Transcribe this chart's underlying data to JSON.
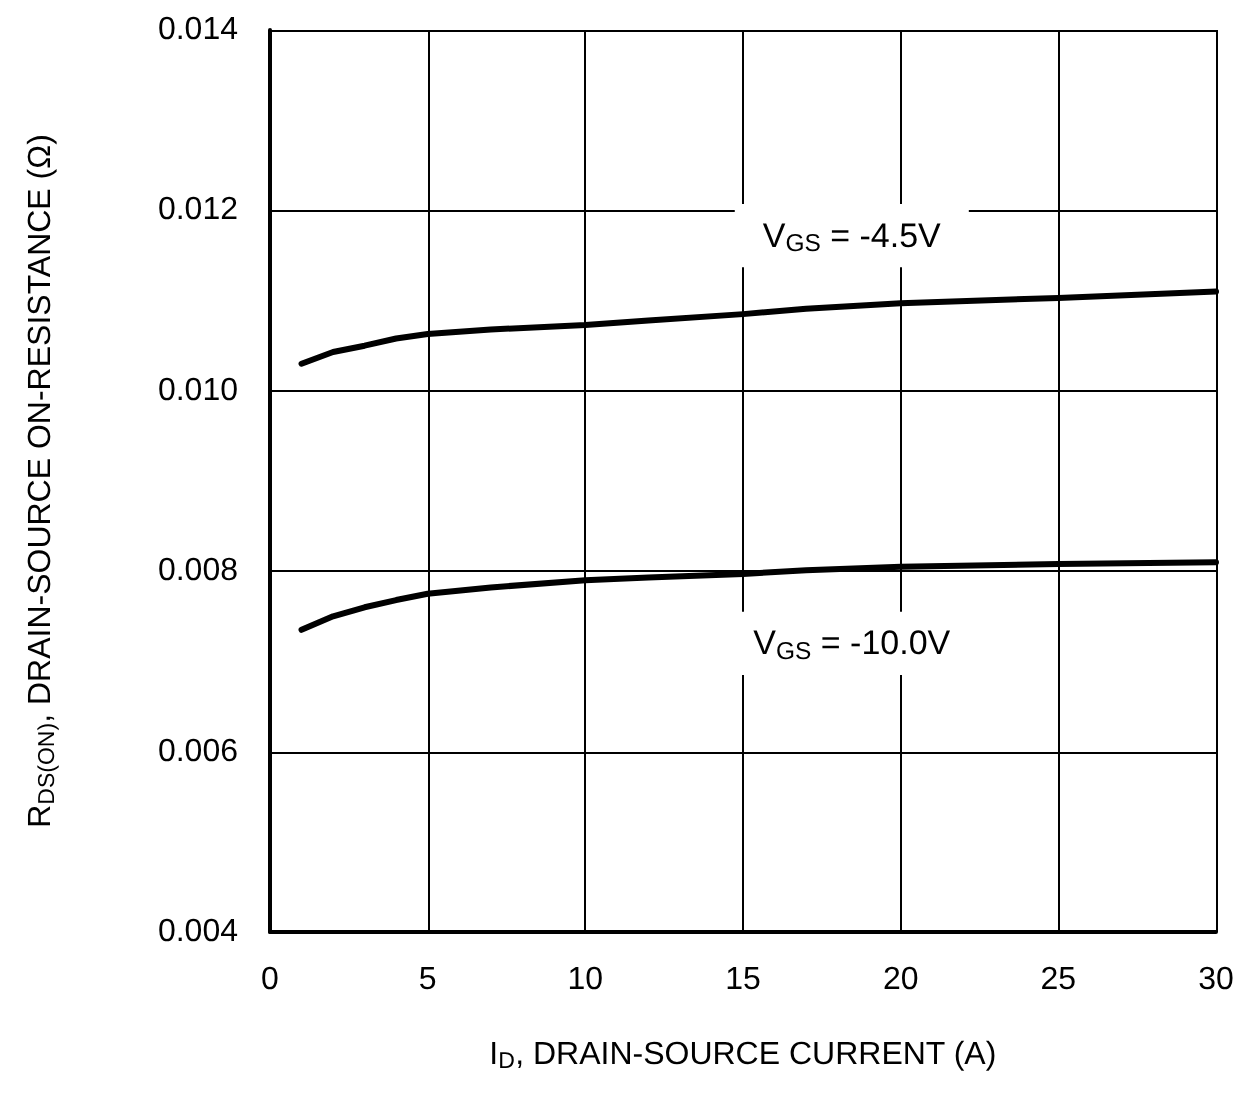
{
  "chart_data": {
    "type": "line",
    "xlabel": "I$_{D}$, DRAIN-SOURCE CURRENT (A)",
    "ylabel": "R$_{DS(ON)}$, DRAIN-SOURCE ON-RESISTANCE (Ω)",
    "xlim": [
      0,
      30
    ],
    "xticks": [
      0,
      5,
      10,
      15,
      20,
      25,
      30
    ],
    "ylim": [
      0.004,
      0.014
    ],
    "yticks": [
      0.004,
      0.006,
      0.008,
      {
        "value": 0.01,
        "label": "0.010"
      },
      0.012,
      0.014
    ],
    "grid": true,
    "marker": "none",
    "line_style": "solid",
    "series": [
      {
        "color": "#000000",
        "x": [
          1,
          2,
          3,
          4,
          5,
          7,
          10,
          12,
          15,
          17,
          20,
          25,
          30
        ],
        "values": [
          0.0103,
          0.01043,
          0.0105,
          0.01058,
          0.01063,
          0.01068,
          0.01073,
          0.01078,
          0.01085,
          0.01091,
          0.01097,
          0.01103,
          0.0111
        ]
      },
      {
        "color": "#000000",
        "x": [
          1,
          2,
          3,
          4,
          5,
          7,
          10,
          12,
          15,
          17,
          20,
          25,
          30
        ],
        "values": [
          0.00735,
          0.0075,
          0.0076,
          0.00768,
          0.00775,
          0.00782,
          0.0079,
          0.00793,
          0.00797,
          0.00801,
          0.00805,
          0.00808,
          0.0081
        ]
      }
    ],
    "annotations": [
      "V$_{GS}$ = -4.5V",
      "V$_{GS}$ = -10.0V"
    ]
  }
}
